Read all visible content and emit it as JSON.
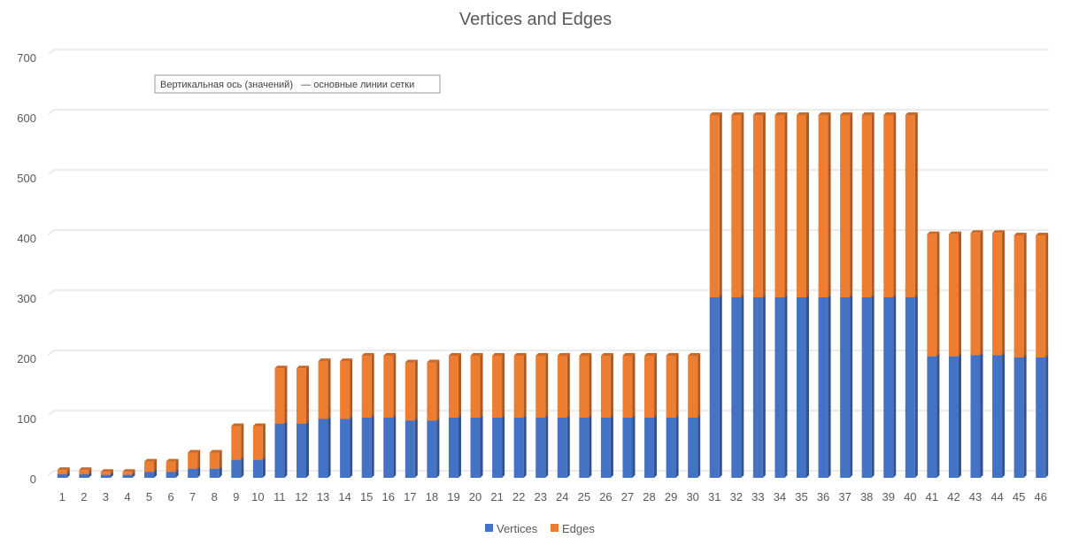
{
  "chart_data": {
    "type": "bar",
    "stacked": true,
    "three_d": true,
    "title": "Vertices and Edges",
    "xlabel": "",
    "ylabel": "",
    "ylim": [
      0,
      700
    ],
    "yticks": [
      0,
      100,
      200,
      300,
      400,
      500,
      600,
      700
    ],
    "grid": true,
    "legend_position": "bottom",
    "categories": [
      "1",
      "2",
      "3",
      "4",
      "5",
      "6",
      "7",
      "8",
      "9",
      "10",
      "11",
      "12",
      "13",
      "14",
      "15",
      "16",
      "17",
      "18",
      "19",
      "20",
      "21",
      "22",
      "23",
      "24",
      "25",
      "26",
      "27",
      "28",
      "29",
      "30",
      "31",
      "32",
      "33",
      "34",
      "35",
      "36",
      "37",
      "38",
      "39",
      "40",
      "41",
      "42",
      "43",
      "44",
      "45",
      "46"
    ],
    "series": [
      {
        "name": "Vertices",
        "color": "#4472c4",
        "values": [
          6,
          6,
          5,
          5,
          10,
          10,
          15,
          15,
          30,
          30,
          90,
          90,
          98,
          98,
          100,
          100,
          95,
          95,
          100,
          100,
          100,
          100,
          100,
          100,
          100,
          100,
          100,
          100,
          100,
          100,
          300,
          300,
          300,
          300,
          300,
          300,
          300,
          300,
          300,
          300,
          202,
          202,
          204,
          204,
          200,
          200
        ]
      },
      {
        "name": "Edges",
        "color": "#ed7d31",
        "values": [
          7,
          7,
          5,
          5,
          17,
          17,
          27,
          27,
          56,
          56,
          92,
          92,
          96,
          96,
          103,
          103,
          97,
          97,
          103,
          103,
          103,
          103,
          103,
          103,
          103,
          103,
          103,
          103,
          103,
          103,
          303,
          303,
          303,
          303,
          303,
          303,
          303,
          303,
          303,
          303,
          203,
          203,
          203,
          203,
          203,
          203
        ]
      }
    ],
    "tooltip": "Вертикальная ось (значений)   — основные линии сетки"
  }
}
